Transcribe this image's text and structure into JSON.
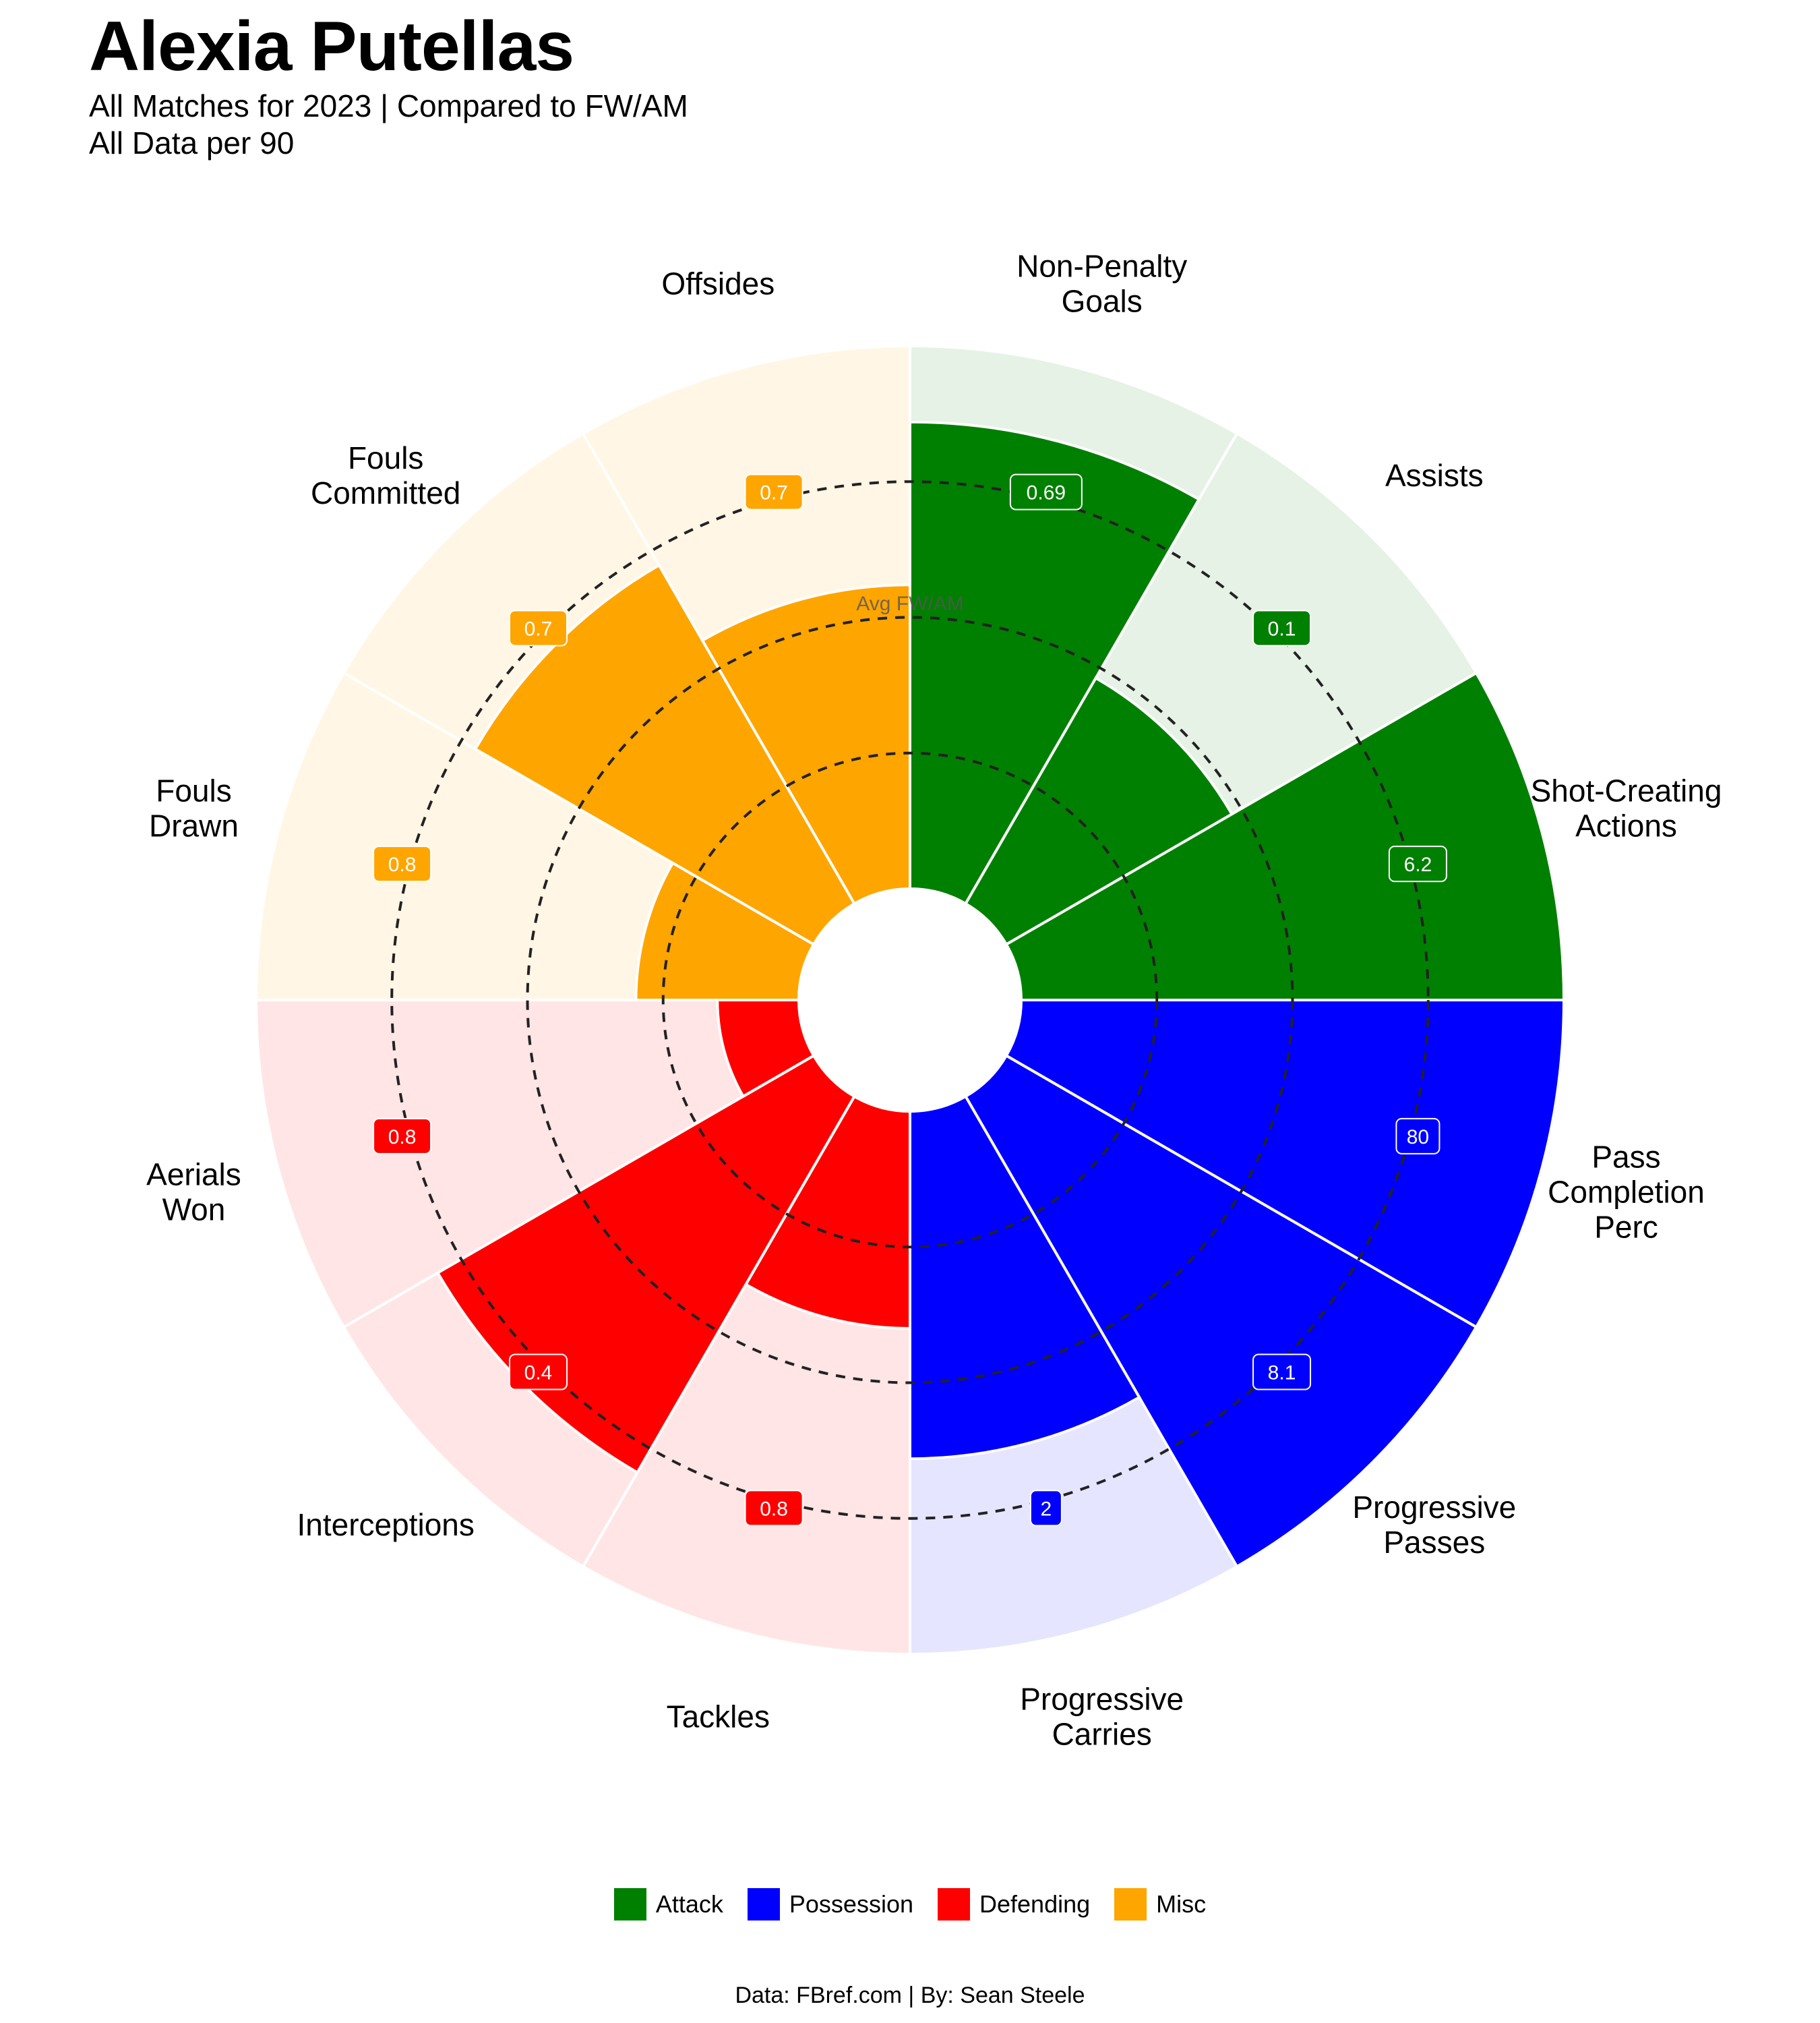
{
  "title": "Alexia Putellas",
  "subtitle_line1": "All Matches for 2023 | Compared to FW/AM",
  "subtitle_line2": "All Data per 90",
  "avg_label": "Avg FW/AM",
  "caption": "Data: FBref.com | By: Sean Steele",
  "colors": {
    "Attack": "#008000",
    "Possession": "#0000FF",
    "Defending": "#FF0000",
    "Misc": "#FFA500"
  },
  "legend": [
    {
      "label": "Attack",
      "color": "#008000"
    },
    {
      "label": "Possession",
      "color": "#0000FF"
    },
    {
      "label": "Defending",
      "color": "#FF0000"
    },
    {
      "label": "Misc",
      "color": "#FFA500"
    }
  ],
  "chart_data": {
    "type": "polar_bar",
    "scale": "percentile",
    "rlim": [
      0,
      100
    ],
    "avg_ring": 50,
    "gridlines": [
      25,
      50,
      75
    ],
    "legend_position": "bottom",
    "stats": [
      {
        "label": [
          "Non-Penalty",
          "Goals"
        ],
        "group": "Attack",
        "value": "0.69",
        "percentile": 86
      },
      {
        "label": [
          "Assists"
        ],
        "group": "Attack",
        "value": "0.1",
        "percentile": 48
      },
      {
        "label": [
          "Shot-Creating",
          "Actions"
        ],
        "group": "Attack",
        "value": "6.2",
        "percentile": 100
      },
      {
        "label": [
          "Pass",
          "Completion",
          "Perc"
        ],
        "group": "Possession",
        "value": "80",
        "percentile": 100
      },
      {
        "label": [
          "Progressive",
          "Passes"
        ],
        "group": "Possession",
        "value": "8.1",
        "percentile": 100
      },
      {
        "label": [
          "Progressive",
          "Carries"
        ],
        "group": "Possession",
        "value": "2",
        "percentile": 64
      },
      {
        "label": [
          "Tackles"
        ],
        "group": "Defending",
        "value": "0.8",
        "percentile": 40
      },
      {
        "label": [
          "Interceptions"
        ],
        "group": "Defending",
        "value": "0.4",
        "percentile": 80
      },
      {
        "label": [
          "Aerials",
          "Won"
        ],
        "group": "Defending",
        "value": "0.8",
        "percentile": 15
      },
      {
        "label": [
          "Fouls",
          "Drawn"
        ],
        "group": "Misc",
        "value": "0.8",
        "percentile": 30
      },
      {
        "label": [
          "Fouls",
          "Committed"
        ],
        "group": "Misc",
        "value": "0.7",
        "percentile": 72
      },
      {
        "label": [
          "Offsides"
        ],
        "group": "Misc",
        "value": "0.7",
        "percentile": 56
      }
    ]
  }
}
